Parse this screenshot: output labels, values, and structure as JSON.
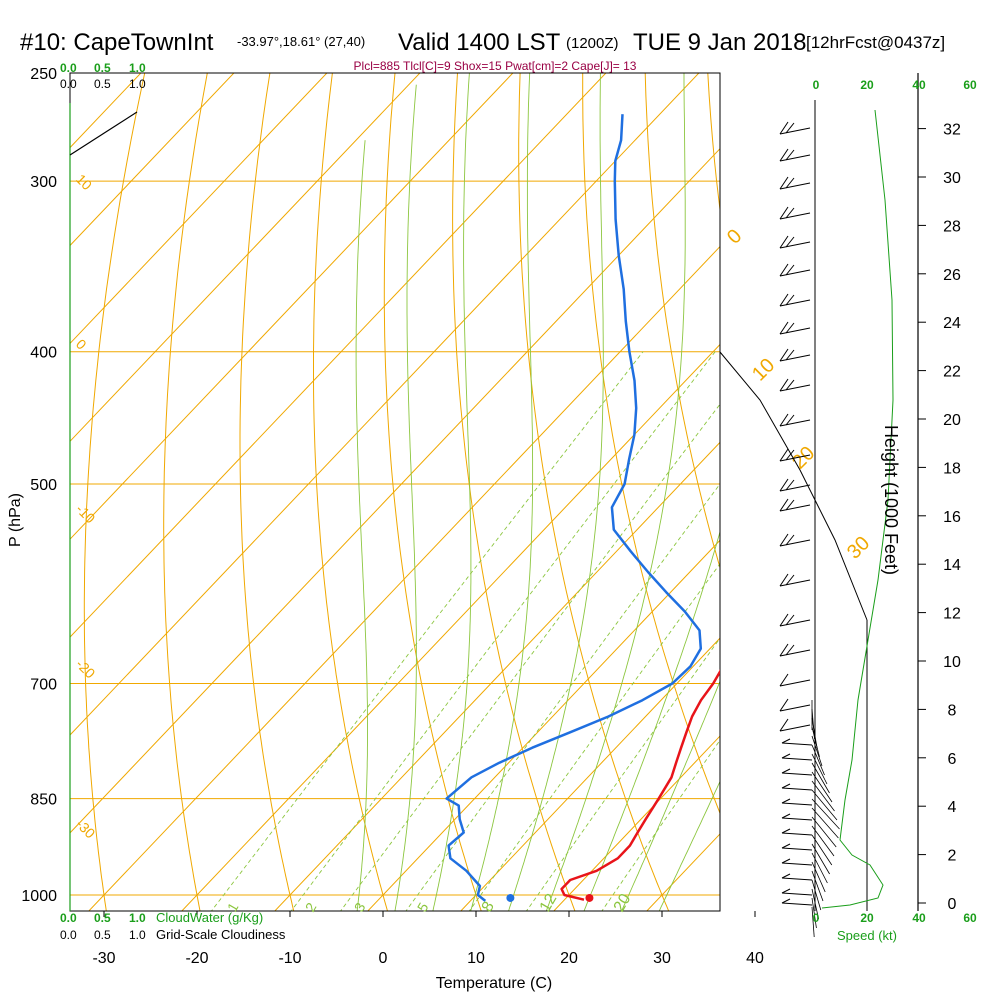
{
  "header": {
    "station": "#10: CapeTownInt",
    "coords": "-33.97°,18.61° (27,40)",
    "valid": "Valid 1400 LST",
    "zulu": "(1200Z)",
    "date": "TUE 9 Jan 2018",
    "fcst": "[12hrFcst@0437z]",
    "indices": "Plcl=885 Tlcl[C]=9 Shox=15 Pwat[cm]=2 Cape[J]= 13"
  },
  "colors": {
    "temperature": "#e8141a",
    "dewpoint": "#1f6fe0",
    "isotherm_isobar": "#f0a800",
    "dry_adiabat": "#f0a800",
    "moist_adiabat": "#8cc63f",
    "mixing_ratio": "#8cc63f",
    "wind_speed": "#1a9e1a",
    "indices": "#990044"
  },
  "chart_data": {
    "type": "line",
    "subtype": "skew-t log-p sounding",
    "xlabel": "Temperature (C)",
    "ylabel": "P (hPa)",
    "y2label": "Height (1000 Feet)",
    "x_ticks": [
      "-30",
      "-20",
      "-10",
      "0",
      "10",
      "20",
      "30",
      "40"
    ],
    "y_ticks": [
      "250",
      "300",
      "400",
      "500",
      "700",
      "850",
      "1000"
    ],
    "y2_ticks": [
      "0",
      "2",
      "4",
      "6",
      "8",
      "10",
      "12",
      "14",
      "16",
      "18",
      "20",
      "22",
      "24",
      "26",
      "28",
      "30",
      "32"
    ],
    "ylim": [
      1000,
      250
    ],
    "y_scale": "log",
    "xlim": [
      -35,
      35
    ],
    "grid": true,
    "series": [
      {
        "name": "Temperature",
        "pressure": [
          1008,
          1000,
          990,
          975,
          960,
          940,
          920,
          900,
          880,
          850,
          820,
          800,
          780,
          760,
          740,
          720,
          700,
          660,
          620,
          580,
          560,
          540,
          520,
          500,
          480,
          460,
          440,
          420,
          400,
          380,
          360,
          340,
          320,
          300,
          285,
          270
        ],
        "values": [
          22.1,
          19.5,
          18.6,
          18.6,
          20.5,
          21.5,
          21.5,
          21.0,
          20.5,
          19.8,
          19.0,
          18.0,
          17.0,
          16.0,
          15.0,
          14.3,
          13.9,
          12.5,
          11.0,
          9.5,
          8.2,
          6.5,
          4.5,
          2.5,
          0.0,
          -2.5,
          -5.0,
          -8.0,
          -11.0,
          -14.5,
          -18.0,
          -22.0,
          -26.0,
          -30.5,
          -34.0,
          -37.5
        ]
      },
      {
        "name": "Dew Point",
        "pressure": [
          1010,
          1000,
          985,
          960,
          940,
          920,
          900,
          880,
          860,
          850,
          820,
          800,
          780,
          760,
          740,
          720,
          700,
          680,
          660,
          640,
          620,
          600,
          580,
          560,
          540,
          520,
          500,
          480,
          460,
          440,
          420,
          400,
          380,
          360,
          340,
          320,
          300,
          290,
          280,
          268
        ],
        "values": [
          11.6,
          10.2,
          9.5,
          6.5,
          3.5,
          2.0,
          2.3,
          0.5,
          -1.0,
          -3.0,
          -2.5,
          -1.0,
          1.0,
          3.5,
          6.0,
          8.0,
          9.5,
          9.7,
          9.0,
          7.0,
          3.5,
          -0.5,
          -4.5,
          -8.5,
          -12.5,
          -15.0,
          -16.0,
          -18.0,
          -20.0,
          -22.5,
          -25.5,
          -29.0,
          -32.5,
          -36.0,
          -40.0,
          -44.0,
          -48.0,
          -50.0,
          -51.5,
          -54.0
        ]
      }
    ],
    "surface_markers": {
      "temperature": 22.5,
      "dewpoint": 14.0
    },
    "isotherm_labels": [
      "-10",
      "0",
      "10",
      "20",
      "30"
    ],
    "isobar_temp_labels": [
      "10",
      "0",
      "-10",
      "-20",
      "-30"
    ],
    "moist_adiabat_labels": [
      "8",
      "12",
      "20"
    ],
    "mixing_ratio_labels": [
      "1",
      "2",
      "3",
      "5"
    ],
    "cloud_scale": [
      "0.0",
      "0.5",
      "1.0"
    ],
    "speed_scale": [
      "0",
      "20",
      "40",
      "60"
    ],
    "legend": [
      "CloudWater (g/Kg)",
      "Grid-Scale Cloudiness",
      "Speed (kt)"
    ]
  }
}
